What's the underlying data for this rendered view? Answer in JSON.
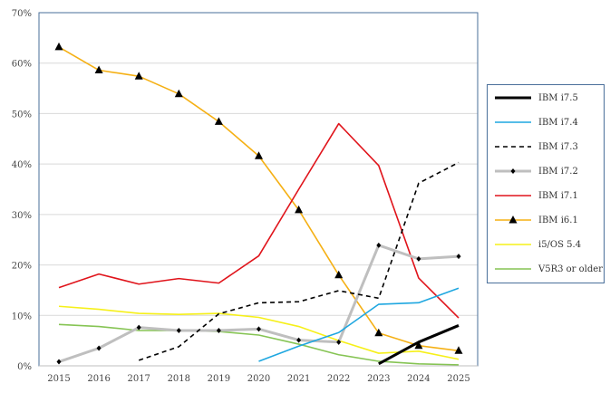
{
  "chart_data": {
    "type": "line",
    "title": "",
    "xlabel": "",
    "ylabel": "",
    "x": [
      2015,
      2016,
      2017,
      2018,
      2019,
      2020,
      2021,
      2022,
      2023,
      2024,
      2025
    ],
    "x_tick_labels": [
      "2015",
      "2016",
      "2017",
      "2018",
      "2019",
      "2020",
      "2021",
      "2022",
      "2023",
      "2024",
      "2025"
    ],
    "ylim": [
      0,
      70
    ],
    "y_tick_labels": [
      "0%",
      "10%",
      "20%",
      "30%",
      "40%",
      "50%",
      "60%",
      "70%"
    ],
    "grid": "horizontal",
    "legend_placement": "right",
    "series": [
      {
        "name": "IBM i7.5",
        "color": "#000000",
        "width": 3,
        "dash": "",
        "marker": "none",
        "values": [
          null,
          null,
          null,
          null,
          null,
          null,
          null,
          null,
          0.4,
          4.7,
          8.0
        ]
      },
      {
        "name": "IBM i7.4",
        "color": "#1fa7e0",
        "width": 1.6,
        "dash": "",
        "marker": "none",
        "values": [
          null,
          null,
          null,
          null,
          null,
          0.9,
          3.9,
          6.6,
          12.2,
          12.5,
          15.4
        ]
      },
      {
        "name": "IBM i7.3",
        "color": "#000000",
        "width": 1.6,
        "dash": "5,4",
        "marker": "none",
        "values": [
          null,
          null,
          1.1,
          3.8,
          10.3,
          12.5,
          12.7,
          14.9,
          13.4,
          36.2,
          40.3
        ]
      },
      {
        "name": "IBM i7.2",
        "color": "#bfbfbf",
        "width": 3,
        "dash": "",
        "marker": "diamond",
        "values": [
          0.8,
          3.5,
          7.6,
          7.0,
          7.0,
          7.3,
          5.1,
          4.7,
          23.9,
          21.2,
          21.7
        ]
      },
      {
        "name": "IBM i7.1",
        "color": "#e0141b",
        "width": 1.6,
        "dash": "",
        "marker": "none",
        "values": [
          15.5,
          18.2,
          16.2,
          17.3,
          16.4,
          21.8,
          35.0,
          48.0,
          39.7,
          17.4,
          9.5
        ]
      },
      {
        "name": "IBM i6.1",
        "color": "#f5b014",
        "width": 1.6,
        "dash": "",
        "marker": "triangle",
        "values": [
          63.2,
          58.6,
          57.4,
          53.9,
          48.4,
          41.6,
          30.9,
          18.0,
          6.5,
          4.0,
          3.0
        ]
      },
      {
        "name": "i5/OS 5.4",
        "color": "#f6f019",
        "width": 1.6,
        "dash": "",
        "marker": "none",
        "values": [
          11.8,
          11.2,
          10.4,
          10.2,
          10.4,
          9.6,
          7.8,
          5.0,
          2.5,
          2.9,
          1.3
        ]
      },
      {
        "name": "V5R3 or older",
        "color": "#86c454",
        "width": 1.6,
        "dash": "",
        "marker": "none",
        "values": [
          8.2,
          7.8,
          7.0,
          7.0,
          6.8,
          6.1,
          4.3,
          2.2,
          0.9,
          0.4,
          0.2
        ]
      }
    ]
  }
}
